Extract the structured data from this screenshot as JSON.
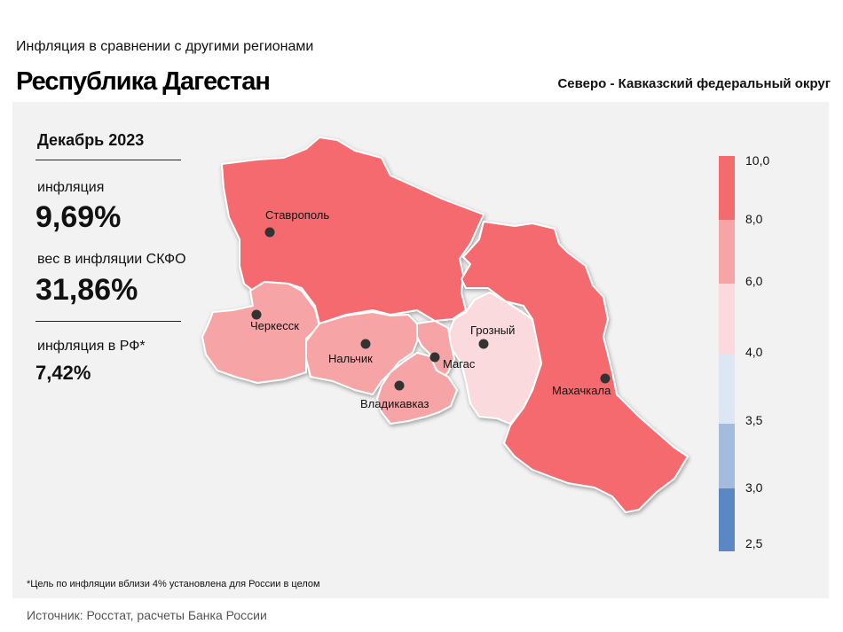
{
  "header": {
    "subtitle": "Инфляция  в сравнении  с другими  регионами",
    "title": "Республика Дагестан",
    "district": "Северо - Кавказский федеральный округ"
  },
  "summary": {
    "period": "Декабрь 2023",
    "inflation_label": "инфляция",
    "inflation_value": "9,69%",
    "weight_label": "вес в инфляции  СКФО",
    "weight_value": "31,86%",
    "rf_label": "инфляция  в РФ*",
    "rf_value": "7,42%"
  },
  "cities": {
    "stavropol": "Ставрополь",
    "cherkessk": "Черкесск",
    "nalchik": "Нальчик",
    "magas": "Магас",
    "vladikavkaz": "Владикавказ",
    "grozny": "Грозный",
    "makhachkala": "Махачкала"
  },
  "legend": {
    "labels": [
      "10,0",
      "8,0",
      "6,0",
      "4,0",
      "3,5",
      "3,0",
      "2,5"
    ],
    "colors": [
      "#f46b6e",
      "#f7a4a6",
      "#fadadd",
      "#dde6f3",
      "#a3bcdd",
      "#5b88c4"
    ]
  },
  "region_colors": {
    "stavropol": "#f46b6e",
    "dagestan": "#f46b6e",
    "chechnya": "#fadadd",
    "karachay_cherkessia": "#f7a4a6",
    "kabardino_balkaria": "#f7a4a6",
    "ingushetia": "#f7a4a6",
    "north_ossetia": "#f7a4a6"
  },
  "footer": {
    "note": "*Цель по инфляции вблизи 4% установлена для России в целом",
    "source": "Источник: Росстат, расчеты Банка России"
  }
}
